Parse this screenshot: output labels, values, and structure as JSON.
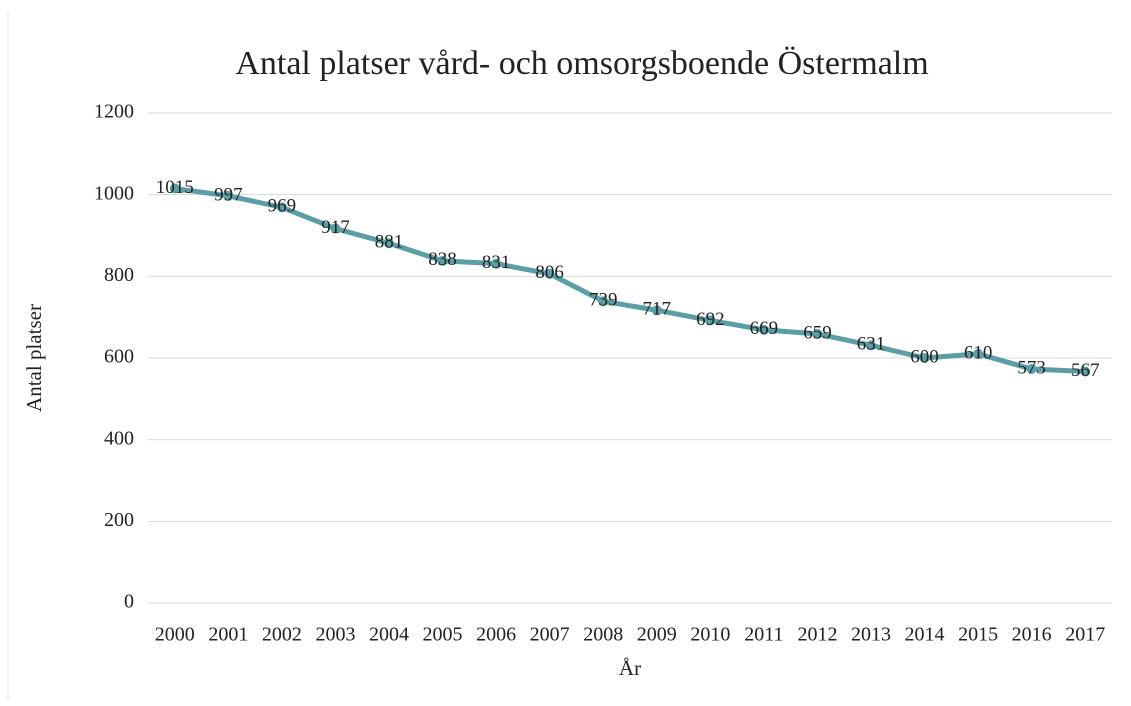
{
  "chart_data": {
    "type": "line",
    "title": "Antal platser vård- och omsorgsboende Östermalm",
    "x_label": "År",
    "y_label": "Antal platser",
    "categories": [
      "2000",
      "2001",
      "2002",
      "2003",
      "2004",
      "2005",
      "2006",
      "2007",
      "2008",
      "2009",
      "2010",
      "2011",
      "2012",
      "2013",
      "2014",
      "2015",
      "2016",
      "2017"
    ],
    "series": [
      {
        "name": "Antal platser",
        "color": "#5b9ea6",
        "values": [
          1015,
          997,
          969,
          917,
          881,
          838,
          831,
          806,
          739,
          717,
          692,
          669,
          659,
          631,
          600,
          610,
          573,
          567
        ]
      }
    ],
    "ylim": [
      0,
      1200
    ],
    "yticks": [
      0,
      200,
      400,
      600,
      800,
      1000,
      1200
    ],
    "grid": true,
    "data_labels": true
  }
}
